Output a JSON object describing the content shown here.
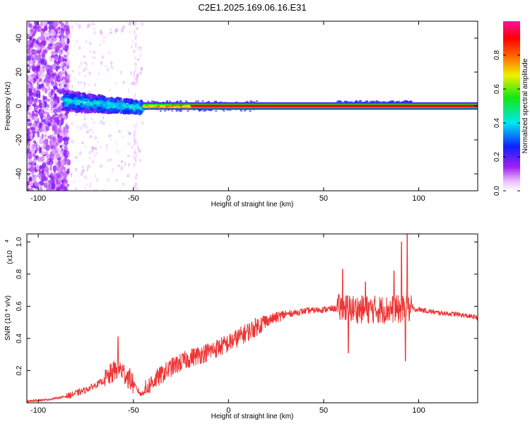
{
  "figure_title": "C2E1.2025.169.06.16.E31",
  "chart_data": [
    {
      "type": "heatmap",
      "title": "C2E1.2025.169.06.16.E31",
      "xlabel": "Height of straight line (km)",
      "ylabel": "Frequency (Hz)",
      "xlim": [
        -106,
        131
      ],
      "ylim": [
        -50,
        50
      ],
      "x_ticks": [
        -100,
        -50,
        0,
        50,
        100
      ],
      "y_ticks": [
        40,
        20,
        0,
        -20,
        -40
      ],
      "colorbar": {
        "label": "Normalized spectral amplitude",
        "range": [
          0,
          1
        ],
        "ticks": [
          0.0,
          0.2,
          0.4,
          0.6,
          0.8
        ]
      },
      "description_regions": [
        {
          "x_range": [
            -106,
            -85
          ],
          "freq_range": [
            -50,
            50
          ],
          "amplitude": 0.15
        },
        {
          "x_range": [
            -87,
            -45
          ],
          "freq_range": [
            -5,
            7
          ],
          "amplitude": 0.35
        },
        {
          "x_range": [
            -45,
            131
          ],
          "freq_range": [
            -1,
            1
          ],
          "amplitude": 0.9
        },
        {
          "x_range": [
            57,
            97
          ],
          "freq_range": [
            -1,
            3
          ],
          "amplitude": 0.3
        }
      ]
    },
    {
      "type": "line",
      "xlabel": "Height of straight line (km)",
      "ylabel": "SNR (10 * v/v)",
      "y_multiplier": "(x10",
      "y_multiplier_exp": "4",
      "xlim": [
        -106,
        131
      ],
      "ylim": [
        0,
        1.05
      ],
      "x_ticks": [
        -100,
        -50,
        0,
        50,
        100
      ],
      "y_ticks": [
        0.2,
        0.4,
        0.6,
        0.8,
        1.0
      ],
      "color": "#ee3333",
      "envelope": [
        {
          "x": -106,
          "y": 0.01
        },
        {
          "x": -95,
          "y": 0.02
        },
        {
          "x": -85,
          "y": 0.04
        },
        {
          "x": -75,
          "y": 0.08
        },
        {
          "x": -65,
          "y": 0.14
        },
        {
          "x": -58,
          "y": 0.22
        },
        {
          "x": -52,
          "y": 0.15
        },
        {
          "x": -46,
          "y": 0.05
        },
        {
          "x": -40,
          "y": 0.13
        },
        {
          "x": -30,
          "y": 0.22
        },
        {
          "x": -20,
          "y": 0.28
        },
        {
          "x": -10,
          "y": 0.32
        },
        {
          "x": 0,
          "y": 0.37
        },
        {
          "x": 10,
          "y": 0.44
        },
        {
          "x": 20,
          "y": 0.51
        },
        {
          "x": 30,
          "y": 0.55
        },
        {
          "x": 40,
          "y": 0.57
        },
        {
          "x": 50,
          "y": 0.58
        },
        {
          "x": 60,
          "y": 0.59
        },
        {
          "x": 70,
          "y": 0.58
        },
        {
          "x": 80,
          "y": 0.58
        },
        {
          "x": 90,
          "y": 0.58
        },
        {
          "x": 100,
          "y": 0.58
        },
        {
          "x": 110,
          "y": 0.56
        },
        {
          "x": 120,
          "y": 0.55
        },
        {
          "x": 131,
          "y": 0.53
        }
      ],
      "peaks": [
        {
          "x": -58,
          "y": 0.41
        },
        {
          "x": 60,
          "y": 0.83
        },
        {
          "x": 72,
          "y": 0.75
        },
        {
          "x": 87,
          "y": 0.82
        },
        {
          "x": 91,
          "y": 1.0
        },
        {
          "x": 94,
          "y": 1.06
        },
        {
          "x": 93,
          "y": 0.26
        },
        {
          "x": 63,
          "y": 0.31
        }
      ]
    }
  ]
}
